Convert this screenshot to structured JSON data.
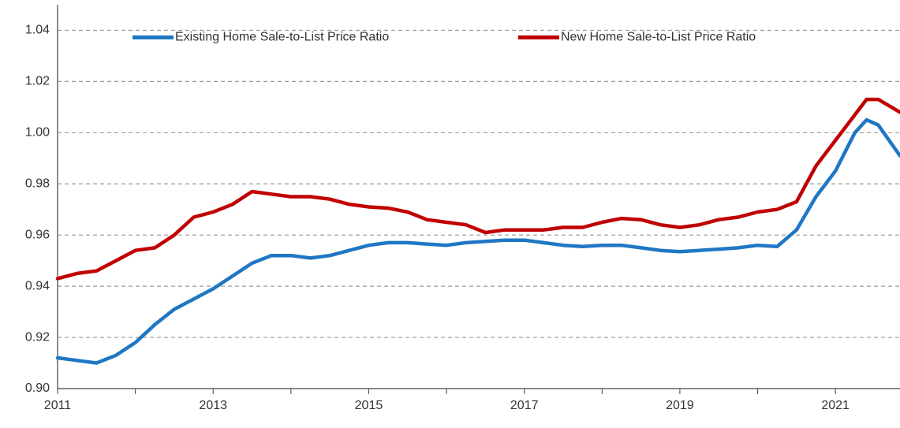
{
  "chart_data": {
    "type": "line",
    "x": [
      2011,
      2011.25,
      2011.5,
      2011.75,
      2012,
      2012.25,
      2012.5,
      2012.75,
      2013,
      2013.25,
      2013.5,
      2013.75,
      2014,
      2014.25,
      2014.5,
      2014.75,
      2015,
      2015.25,
      2015.5,
      2015.75,
      2016,
      2016.25,
      2016.5,
      2016.75,
      2017,
      2017.25,
      2017.5,
      2017.75,
      2018,
      2018.25,
      2018.5,
      2018.75,
      2019,
      2019.25,
      2019.5,
      2019.75,
      2020,
      2020.25,
      2020.5,
      2020.75,
      2021,
      2021.25,
      2021.4,
      2021.55,
      2021.83
    ],
    "series": [
      {
        "name": "Existing Home Sale-to-List Price Ratio",
        "color": "#1f77c4",
        "values": [
          0.912,
          0.911,
          0.91,
          0.913,
          0.918,
          0.925,
          0.931,
          0.935,
          0.939,
          0.944,
          0.949,
          0.952,
          0.952,
          0.951,
          0.952,
          0.954,
          0.956,
          0.957,
          0.957,
          0.9565,
          0.956,
          0.957,
          0.9575,
          0.958,
          0.958,
          0.957,
          0.956,
          0.9555,
          0.956,
          0.956,
          0.955,
          0.954,
          0.9535,
          0.954,
          0.9545,
          0.955,
          0.956,
          0.9555,
          0.962,
          0.975,
          0.985,
          1.0,
          1.005,
          1.003,
          0.991
        ]
      },
      {
        "name": "New Home Sale-to-List Price Ratio",
        "color": "#c00000",
        "values": [
          0.943,
          0.945,
          0.946,
          0.95,
          0.954,
          0.955,
          0.96,
          0.967,
          0.969,
          0.972,
          0.977,
          0.976,
          0.975,
          0.975,
          0.974,
          0.972,
          0.971,
          0.9705,
          0.969,
          0.966,
          0.965,
          0.964,
          0.961,
          0.962,
          0.962,
          0.962,
          0.963,
          0.963,
          0.965,
          0.9665,
          0.966,
          0.964,
          0.963,
          0.964,
          0.966,
          0.967,
          0.969,
          0.97,
          0.973,
          0.987,
          0.997,
          1.007,
          1.013,
          1.013,
          1.008
        ]
      }
    ],
    "xlim": [
      2011,
      2021.83
    ],
    "xticks": [
      2011,
      2013,
      2015,
      2017,
      2019,
      2021
    ],
    "xminorticks": [
      2012,
      2014,
      2016,
      2018,
      2020
    ],
    "ylim": [
      0.9,
      1.05
    ],
    "yticks": [
      {
        "value": 0.9,
        "label": "0.90"
      },
      0.92,
      0.94,
      0.96,
      0.98,
      {
        "value": 1.0,
        "label": "1.00"
      },
      1.02,
      1.04
    ],
    "grid": true,
    "legend": "top"
  }
}
